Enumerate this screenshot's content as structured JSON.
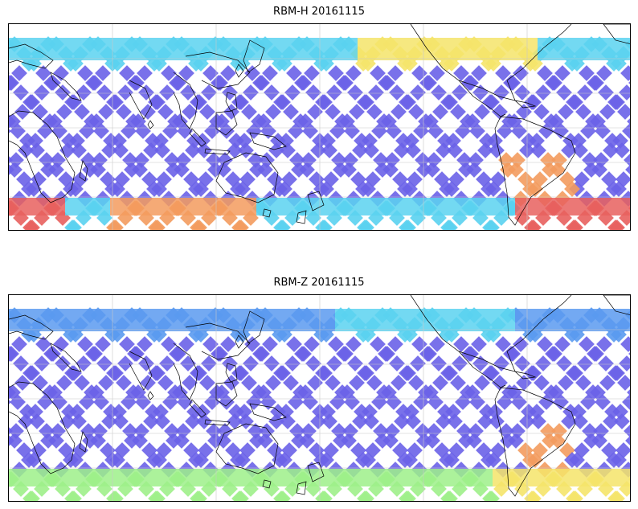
{
  "figure": {
    "panels": [
      {
        "id": "rbm-h",
        "title": "RBM-H 20161115"
      },
      {
        "id": "rbm-z",
        "title": "RBM-Z 20161115"
      }
    ],
    "colors": {
      "low": "#6a62e8",
      "low_mid": "#5a9af0",
      "mid": "#5ad2f0",
      "mid_high": "#9ef08a",
      "high": "#f5e46a",
      "very_high": "#f39b5e",
      "max": "#e8605e",
      "grid": "#c8c8c8",
      "coast": "#000000"
    }
  }
}
